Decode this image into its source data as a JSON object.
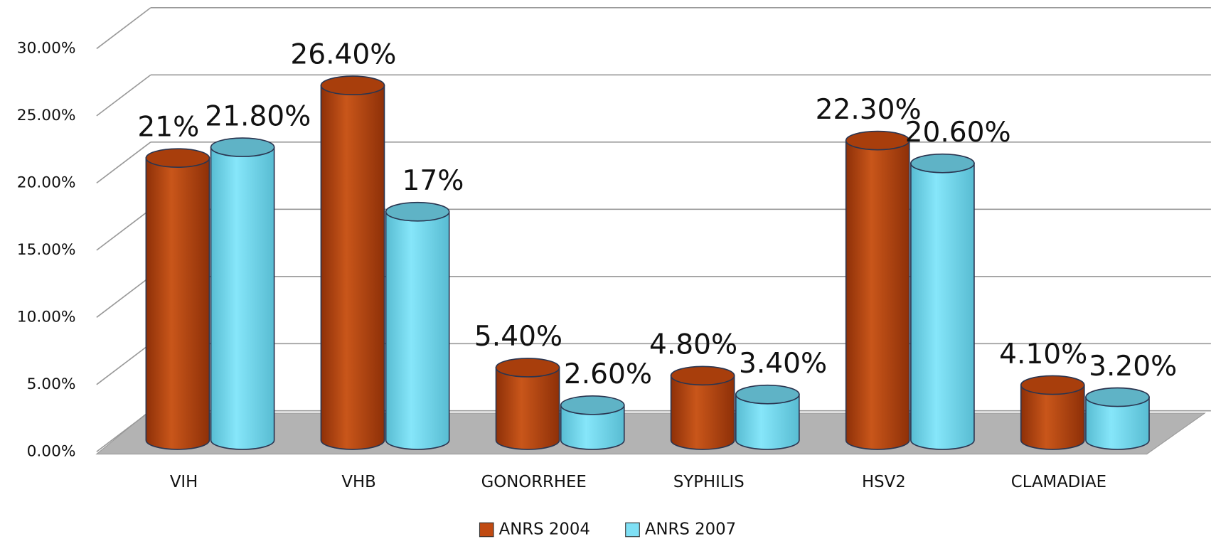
{
  "chart_data": {
    "type": "bar3d",
    "categories": [
      "VIH",
      "VHB",
      "GONORRHEE",
      "SYPHILIS",
      "HSV2",
      "CLAMADIAE"
    ],
    "series": [
      {
        "name": "ANRS 2004",
        "color": "#c04a12",
        "values": [
          21,
          26.4,
          5.4,
          4.8,
          22.3,
          4.1
        ],
        "value_labels": [
          "21%",
          "26.40%",
          "5.40%",
          "4.80%",
          "22.30%",
          "4.10%"
        ]
      },
      {
        "name": "ANRS 2007",
        "color": "#7fe0f5",
        "values": [
          21.8,
          17,
          2.6,
          3.4,
          20.6,
          3.2
        ],
        "value_labels": [
          "21.80%",
          "17%",
          "2.60%",
          "3.40%",
          "20.60%",
          "3.20%"
        ]
      }
    ],
    "ylim": [
      0,
      30
    ],
    "yticks": [
      {
        "value": 0,
        "label": "0.00%"
      },
      {
        "value": 5,
        "label": "5.00%"
      },
      {
        "value": 10,
        "label": "10.00%"
      },
      {
        "value": 15,
        "label": "15.00%"
      },
      {
        "value": 20,
        "label": "20.00%"
      },
      {
        "value": 25,
        "label": "25.00%"
      },
      {
        "value": 30,
        "label": "30.00%"
      }
    ],
    "grid": true,
    "legend": "bottom"
  }
}
